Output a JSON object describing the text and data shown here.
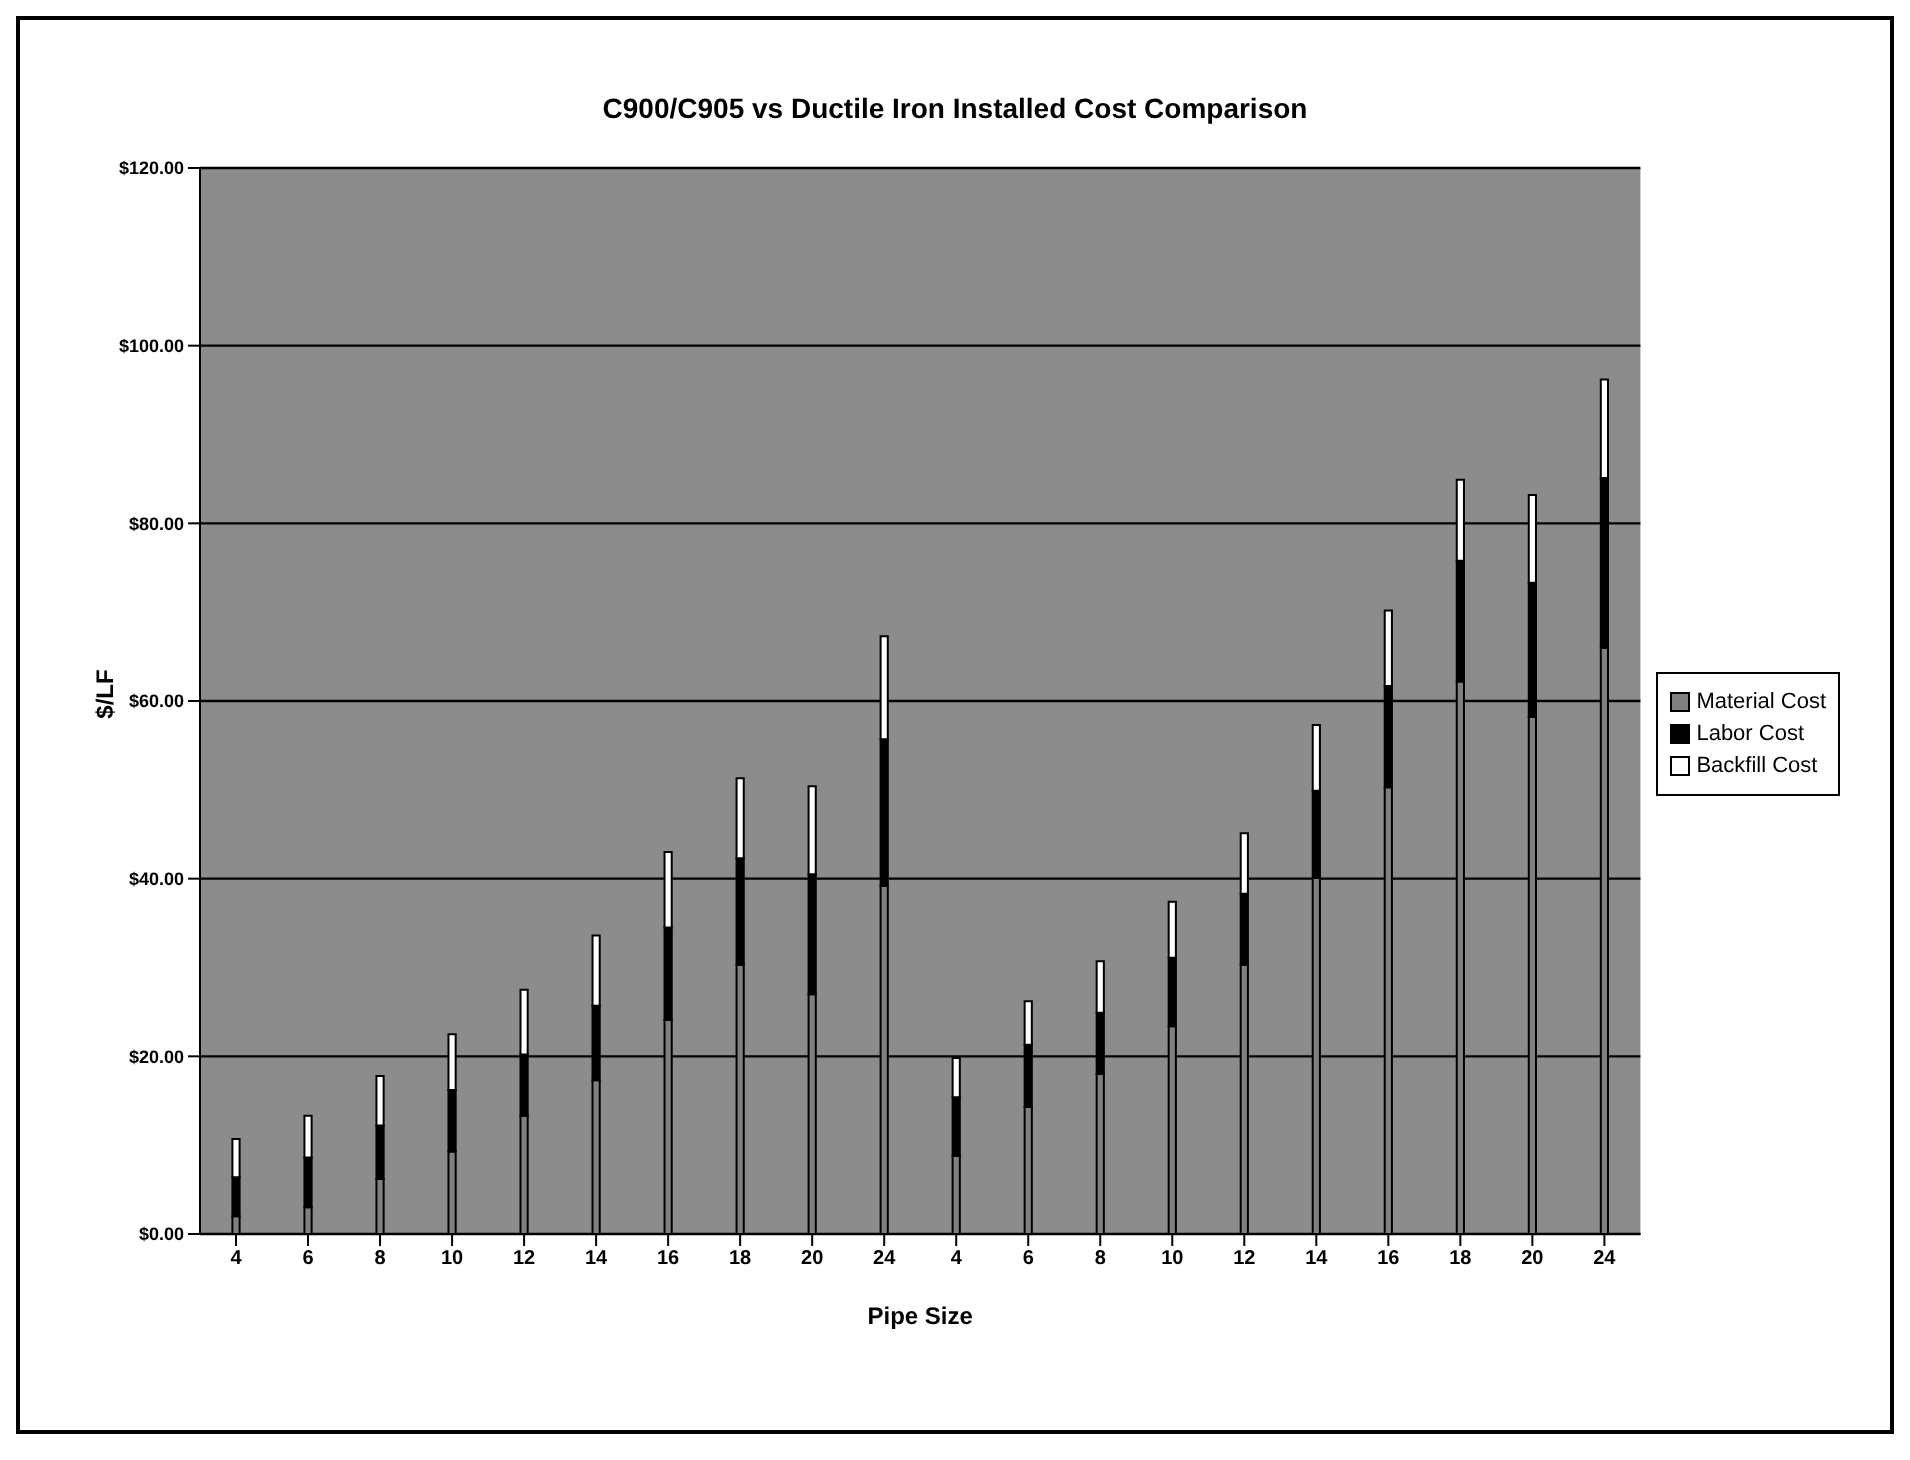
{
  "chart_data": {
    "type": "bar",
    "title": "C900/C905 vs Ductile Iron Installed Cost Comparison",
    "xlabel": "Pipe Size",
    "ylabel": "$/LF",
    "categories": [
      "4",
      "6",
      "8",
      "10",
      "12",
      "14",
      "16",
      "18",
      "20",
      "24",
      "4",
      "6",
      "8",
      "10",
      "12",
      "14",
      "16",
      "18",
      "20",
      "24"
    ],
    "stacked": true,
    "series": [
      {
        "name": "Material Cost",
        "color": "#808080",
        "values": [
          2,
          3,
          6.2,
          9.3,
          13.3,
          17.3,
          24.1,
          30.3,
          27.0,
          39.2,
          8.8,
          14.3,
          18.0,
          23.4,
          30.3,
          40.1,
          50.3,
          62.2,
          58.2,
          66.0
        ]
      },
      {
        "name": "Labor Cost",
        "color": "#000000",
        "values": [
          4.4,
          5.6,
          6.0,
          6.9,
          6.9,
          8.4,
          10.4,
          12.0,
          13.5,
          16.5,
          6.6,
          7.0,
          6.9,
          7.7,
          8.0,
          9.8,
          11.4,
          13.6,
          15.1,
          19.1
        ]
      },
      {
        "name": "Backfill Cost",
        "color": "#ffffff",
        "values": [
          4.3,
          4.7,
          5.6,
          6.3,
          7.3,
          7.9,
          8.5,
          9.0,
          9.9,
          11.6,
          4.4,
          4.9,
          5.8,
          6.3,
          6.8,
          7.4,
          8.5,
          9.1,
          9.9,
          11.1
        ]
      }
    ],
    "ylim": [
      0,
      120
    ],
    "yticks": [
      {
        "value": 0,
        "label": "$0.00"
      },
      {
        "value": 20,
        "label": "$20.00"
      },
      {
        "value": 40,
        "label": "$40.00"
      },
      {
        "value": 60,
        "label": "$60.00"
      },
      {
        "value": 80,
        "label": "$80.00"
      },
      {
        "value": 100,
        "label": "$100.00"
      },
      {
        "value": 120,
        "label": "$120.00"
      }
    ],
    "grid": "y",
    "legend": "right"
  }
}
